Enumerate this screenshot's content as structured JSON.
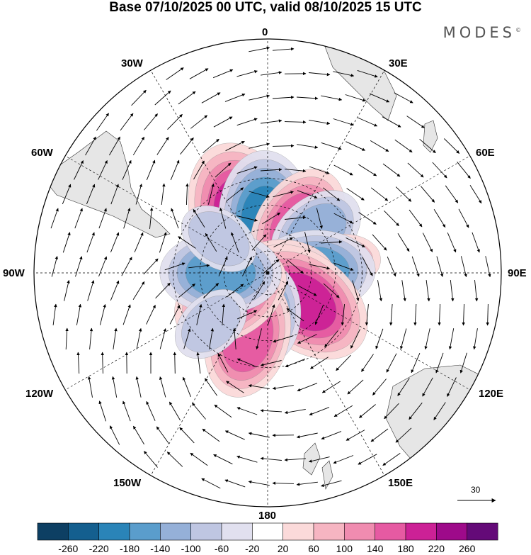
{
  "title": "Base 07/10/2025 00 UTC, valid 08/10/2025 15 UTC",
  "brand": "MODES",
  "brand_mark": "©",
  "longitude_labels": {
    "lon_0": "0",
    "lon_30e": "30E",
    "lon_60e": "60E",
    "lon_90e": "90E",
    "lon_120e": "120E",
    "lon_150e": "150E",
    "lon_180": "180",
    "lon_150w": "150W",
    "lon_120w": "120W",
    "lon_90w": "90W",
    "lon_60w": "60W",
    "lon_30w": "30W"
  },
  "reference_vector": "30",
  "colorbar": {
    "labels": [
      "-260",
      "-220",
      "-180",
      "-140",
      "-100",
      "-60",
      "-20",
      "20",
      "60",
      "100",
      "140",
      "180",
      "220",
      "260"
    ],
    "colors": [
      "#0d3f63",
      "#145f8f",
      "#2a84b8",
      "#5a9dcc",
      "#95b0d8",
      "#bfc6e2",
      "#e1e0ef",
      "#ffffff",
      "#fbdada",
      "#f6b5c2",
      "#f08cb0",
      "#e65aa2",
      "#cc2196",
      "#9e0a8a",
      "#640a78"
    ]
  },
  "chart_data": {
    "type": "polar-stereographic anomaly map",
    "projection": "south polar stereographic",
    "field": "shaded anomaly with wind vectors",
    "features": [
      {
        "kind": "positive",
        "lon": -22,
        "lat": -52,
        "peak": 240
      },
      {
        "kind": "negative",
        "lon": -2,
        "lat": -55,
        "peak": -190
      },
      {
        "kind": "positive",
        "lon": 32,
        "lat": -52,
        "peak": 160
      },
      {
        "kind": "negative",
        "lon": 50,
        "lat": -48,
        "peak": -100
      },
      {
        "kind": "positive",
        "lon": 82,
        "lat": -42,
        "peak": 70
      },
      {
        "kind": "negative",
        "lon": 88,
        "lat": -58,
        "peak": -160
      },
      {
        "kind": "positive",
        "lon": 95,
        "lat": -78,
        "peak": 100
      },
      {
        "kind": "positive",
        "lon": 128,
        "lat": -58,
        "peak": 190
      },
      {
        "kind": "negative",
        "lon": -178,
        "lat": -62,
        "peak": -110
      },
      {
        "kind": "positive",
        "lon": -163,
        "lat": -45,
        "peak": 170
      },
      {
        "kind": "positive",
        "lon": -122,
        "lat": -60,
        "peak": 160
      },
      {
        "kind": "negative",
        "lon": -90,
        "lat": -58,
        "peak": -160
      },
      {
        "kind": "negative",
        "lon": -55,
        "lat": -50,
        "peak": -90
      },
      {
        "kind": "negative",
        "lon": -132,
        "lat": -40,
        "peak": -70
      }
    ]
  }
}
